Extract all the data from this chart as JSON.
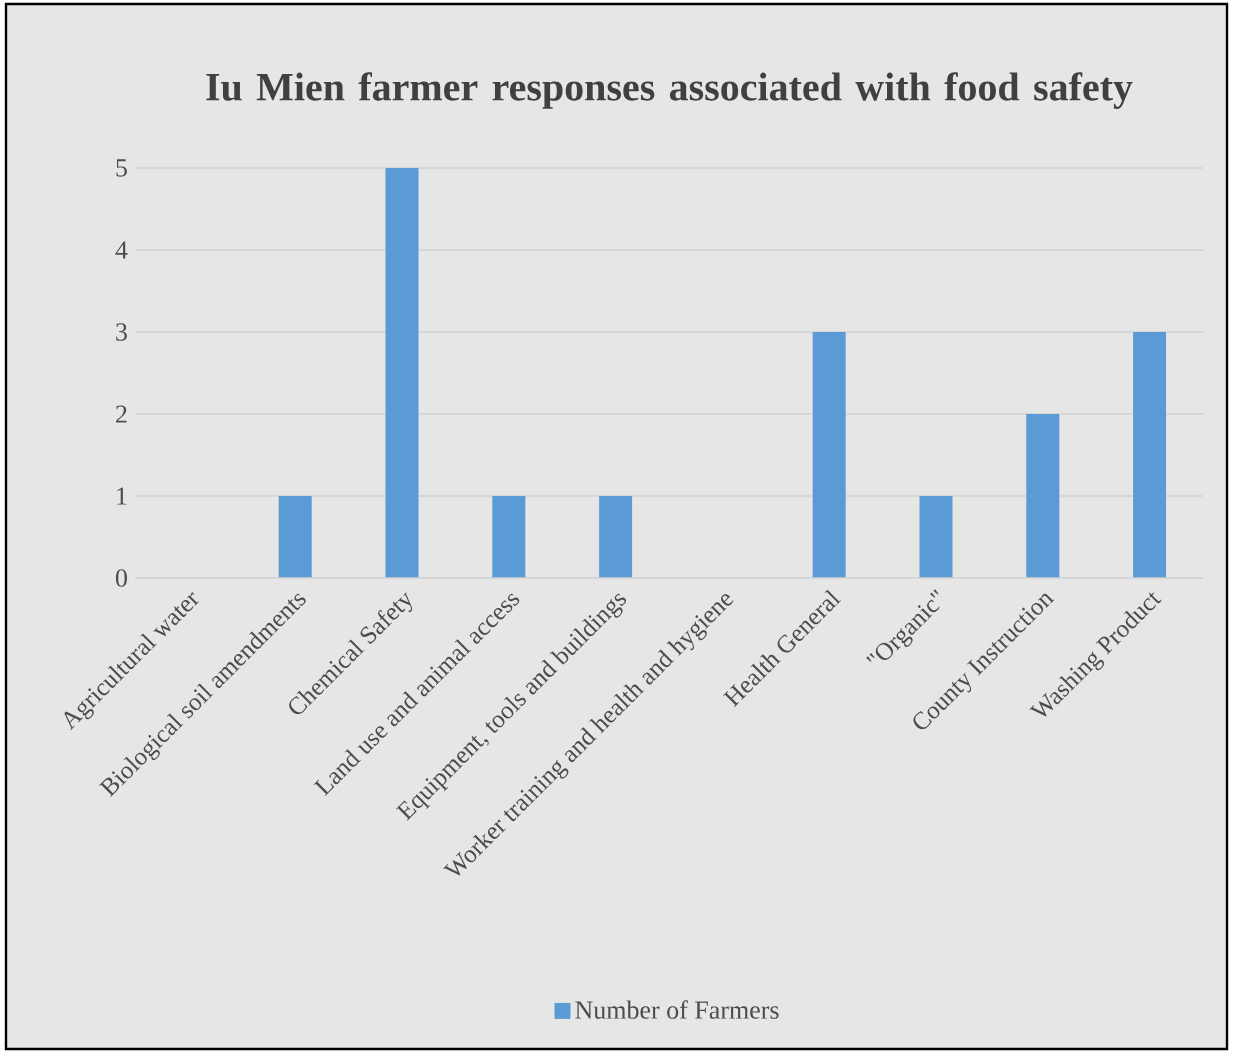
{
  "chart_data": {
    "type": "bar",
    "title": "Iu Mien farmer responses associated with food safety",
    "categories": [
      "Agricultural water",
      "Biological soil amendments",
      "Chemical Safety",
      "Land use and animal access",
      "Equipment, tools and buildings",
      "Worker training and health and hygiene",
      "Health General",
      "\"Organic\"",
      "County Instruction",
      "Washing Product"
    ],
    "series": [
      {
        "name": "Number of Farmers",
        "color": "#5b9bd5",
        "values": [
          0,
          1,
          5,
          1,
          1,
          0,
          3,
          1,
          2,
          3
        ]
      }
    ],
    "ylim": [
      0,
      5
    ],
    "yticks": [
      0,
      1,
      2,
      3,
      4,
      5
    ],
    "grid": "y",
    "legend": "bottom"
  }
}
